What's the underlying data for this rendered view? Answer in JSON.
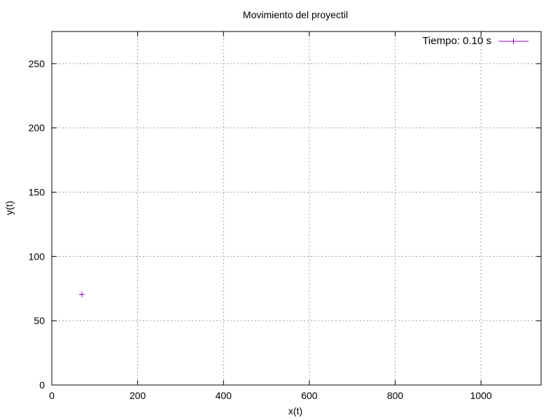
{
  "chart_data": {
    "type": "scatter",
    "title": "Movimiento del proyectil",
    "xlabel": "x(t)",
    "ylabel": "y(t)",
    "xlim": [
      0,
      1140
    ],
    "ylim": [
      0,
      275
    ],
    "xticks": [
      0,
      200,
      400,
      600,
      800,
      1000
    ],
    "yticks": [
      0,
      50,
      100,
      150,
      200,
      250
    ],
    "grid": true,
    "legend_position": "top-right",
    "series": [
      {
        "name": "Tiempo: 0.10 s",
        "color": "#9400d3",
        "marker": "plus",
        "points": [
          {
            "x": 70,
            "y": 70.5
          }
        ]
      }
    ]
  }
}
